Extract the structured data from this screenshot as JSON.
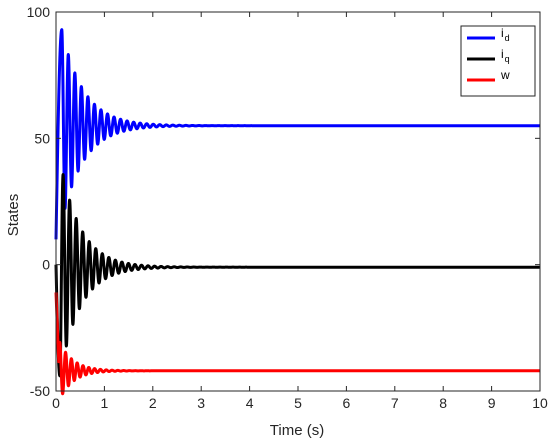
{
  "chart_data": {
    "type": "line",
    "title": "",
    "xlabel": "Time (s)",
    "ylabel": "States",
    "xlim": [
      0,
      10
    ],
    "ylim": [
      -50,
      100
    ],
    "xticks": [
      "0",
      "1",
      "2",
      "3",
      "4",
      "5",
      "6",
      "7",
      "8",
      "9",
      "10"
    ],
    "yticks": [
      "-50",
      "0",
      "50",
      "100"
    ],
    "grid": false,
    "legend_position": "top-right",
    "series": [
      {
        "name": "i",
        "subscript": "d",
        "color": "#0000ff",
        "initial": 10,
        "steady": 55,
        "peak": 93,
        "peak_time": 0.12,
        "settling_time": 2.4
      },
      {
        "name": "i",
        "subscript": "q",
        "color": "#000000",
        "initial": 0,
        "steady": -1,
        "peak": 32,
        "peak_time": 0.22,
        "min": -44,
        "min_time": 0.08,
        "settling_time": 2.0
      },
      {
        "name": "w",
        "subscript": "",
        "color": "#ff0000",
        "initial": -11,
        "steady": -42,
        "min": -42,
        "settling_time": 1.2
      }
    ]
  }
}
